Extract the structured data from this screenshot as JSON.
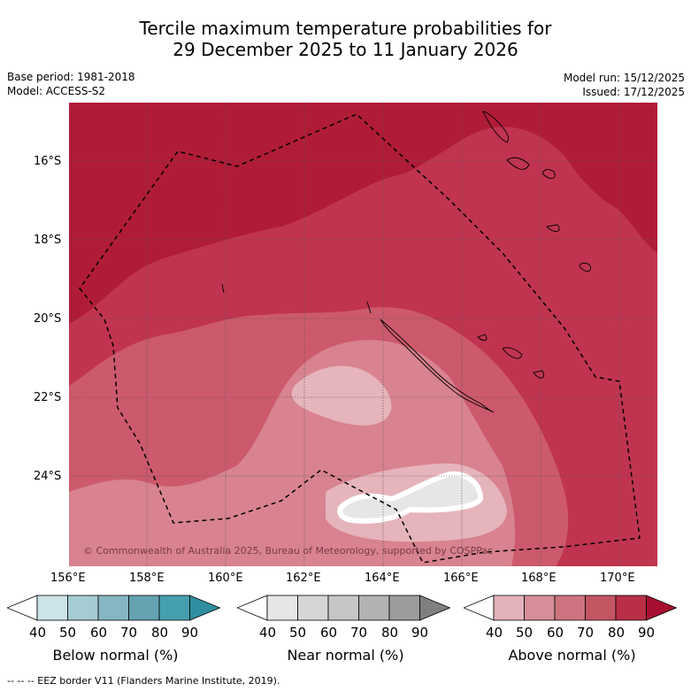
{
  "header": {
    "title_line1": "Tercile maximum temperature probabilities for",
    "title_line2": "29 December 2025 to 11 January 2026",
    "base_period": "Base period: 1981-2018",
    "model": "Model: ACCESS-S2",
    "model_run": "Model run: 15/12/2025",
    "issued": "Issued: 17/12/2025"
  },
  "map": {
    "lat_labels": [
      "16°S",
      "18°S",
      "20°S",
      "22°S",
      "24°S"
    ],
    "lon_labels": [
      "156°E",
      "158°E",
      "160°E",
      "162°E",
      "164°E",
      "166°E",
      "168°E",
      "170°E"
    ],
    "copyright": "© Commonwealth of Australia 2025, Bureau of Meteorology, supported by COSPPac",
    "colors": {
      "above_90": "#b01c38",
      "above_80": "#c0344f",
      "above_70": "#cc5a6c",
      "above_60": "#d8838f",
      "above_50": "#e6b4bb",
      "near": "#e6e6e6"
    }
  },
  "legend": {
    "ticks": [
      "40",
      "50",
      "60",
      "70",
      "80",
      "90"
    ],
    "below": {
      "label": "Below normal (%)",
      "colors": [
        "#cce3e8",
        "#a6ccd3",
        "#86b6c2",
        "#65a2b1",
        "#469fae",
        "#2f8fa0"
      ]
    },
    "near": {
      "label": "Near normal (%)",
      "colors": [
        "#e6e6e6",
        "#d6d6d6",
        "#c6c6c6",
        "#b2b2b2",
        "#9c9c9c",
        "#7f7f7f"
      ]
    },
    "above": {
      "label": "Above normal (%)",
      "colors": [
        "#e2b3ba",
        "#d78e98",
        "#cd7480",
        "#c45563",
        "#b82f47",
        "#a60f2f"
      ]
    }
  },
  "footer": "-- -- -- EEZ border V11 (Flanders Marine Institute, 2019)."
}
